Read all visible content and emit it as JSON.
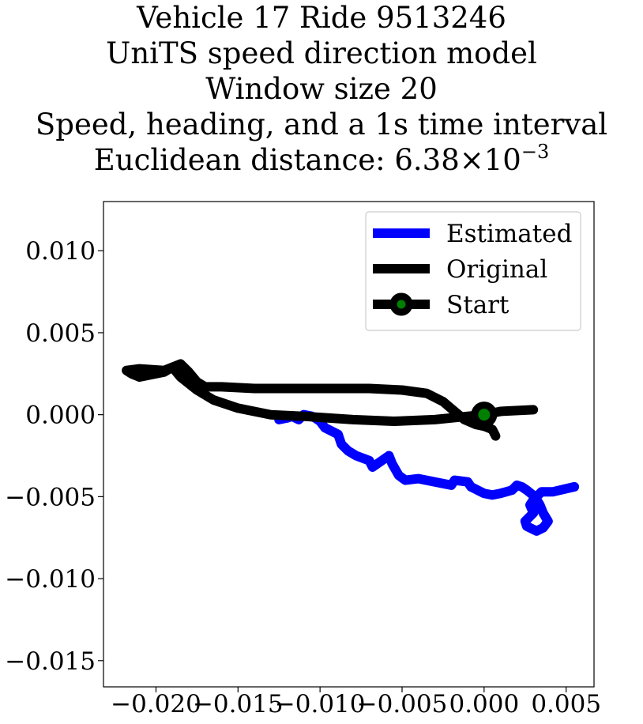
{
  "title": {
    "line1": "Vehicle 17 Ride 9513246",
    "line2": "UniTS speed direction model",
    "line3": "Window size 20",
    "line4": "Speed, heading, and a 1s time interval",
    "line5_prefix": "Euclidean distance: 6.38×10",
    "line5_exponent": "−3"
  },
  "chart_data": {
    "type": "line",
    "xlim": [
      -0.0232,
      0.0067
    ],
    "ylim": [
      -0.0166,
      0.013
    ],
    "x_ticks": [
      {
        "value": -0.02,
        "label": "−0.020"
      },
      {
        "value": -0.015,
        "label": "−0.015"
      },
      {
        "value": -0.01,
        "label": "−0.010"
      },
      {
        "value": -0.005,
        "label": "−0.005"
      },
      {
        "value": 0.0,
        "label": "0.000"
      },
      {
        "value": 0.005,
        "label": "0.005"
      }
    ],
    "y_ticks": [
      {
        "value": 0.01,
        "label": "0.010"
      },
      {
        "value": 0.005,
        "label": "0.005"
      },
      {
        "value": 0.0,
        "label": "0.000"
      },
      {
        "value": -0.005,
        "label": "−0.005"
      },
      {
        "value": -0.01,
        "label": "−0.010"
      },
      {
        "value": -0.015,
        "label": "−0.015"
      }
    ],
    "grid": false,
    "legend_position": "top-right",
    "series": [
      {
        "name": "Estimated",
        "color": "#0000ff",
        "x": [
          0.0055,
          0.0042,
          0.0035,
          0.003,
          0.0028,
          0.003,
          0.0025,
          0.0026,
          0.0032,
          0.0036,
          0.0039,
          0.0036,
          0.0034,
          0.0031,
          0.0026,
          0.0023,
          0.002,
          0.0017,
          0.001,
          0.0005,
          0.0,
          -0.0008,
          -0.001,
          -0.0018,
          -0.002,
          -0.004,
          -0.0048,
          -0.0052,
          -0.0056,
          -0.0058,
          -0.0068,
          -0.007,
          -0.0078,
          -0.0083,
          -0.0087,
          -0.0089,
          -0.0093,
          -0.0097,
          -0.01,
          -0.0103,
          -0.0105,
          -0.011,
          -0.0113,
          -0.0117,
          -0.012,
          -0.0125
        ],
        "y": [
          -0.0044,
          -0.0047,
          -0.0047,
          -0.0052,
          -0.0055,
          -0.006,
          -0.0065,
          -0.0068,
          -0.0071,
          -0.0069,
          -0.0065,
          -0.006,
          -0.0055,
          -0.005,
          -0.0046,
          -0.0044,
          -0.0043,
          -0.0046,
          -0.0048,
          -0.0049,
          -0.0048,
          -0.0044,
          -0.0041,
          -0.004,
          -0.0043,
          -0.0039,
          -0.004,
          -0.0037,
          -0.003,
          -0.0025,
          -0.0032,
          -0.0028,
          -0.0025,
          -0.0022,
          -0.0018,
          -0.0012,
          -0.001,
          -0.0008,
          -0.0004,
          -0.0002,
          -0.0001,
          0.0,
          -0.0003,
          -0.0001,
          -0.0002,
          -0.0003
        ]
      },
      {
        "name": "Original",
        "color": "#000000",
        "x": [
          0.003,
          0.001,
          0.0,
          -0.001,
          -0.003,
          -0.0055,
          -0.008,
          -0.011,
          -0.013,
          -0.015,
          -0.0165,
          -0.0175,
          -0.0185,
          -0.019,
          -0.0195,
          -0.021,
          -0.0215,
          -0.0218,
          -0.021,
          -0.0195,
          -0.0185,
          -0.018,
          -0.0175,
          -0.017,
          -0.016,
          -0.014,
          -0.01,
          -0.007,
          -0.005,
          -0.0035,
          -0.0025,
          -0.0018,
          -0.0012,
          -0.0005,
          0.0,
          0.0005,
          0.0007
        ],
        "y": [
          0.0003,
          0.0002,
          0.0,
          -0.0001,
          -0.0003,
          -0.0004,
          -0.0003,
          -0.0001,
          0.0,
          0.0004,
          0.0009,
          0.0015,
          0.0023,
          0.0029,
          0.0026,
          0.0023,
          0.0025,
          0.0027,
          0.0028,
          0.0027,
          0.0031,
          0.0026,
          0.002,
          0.0017,
          0.0017,
          0.0016,
          0.0016,
          0.0016,
          0.0015,
          0.0013,
          0.0008,
          0.0002,
          -0.0003,
          -0.0006,
          -0.0007,
          -0.0009,
          -0.0013
        ]
      }
    ],
    "start_marker": {
      "name": "Start",
      "x": 0.0,
      "y": 0.0,
      "edge_color": "#000000",
      "face_color": "#008000"
    },
    "legend": [
      {
        "label": "Estimated",
        "color": "#0000ff",
        "marker": false
      },
      {
        "label": "Original",
        "color": "#000000",
        "marker": false
      },
      {
        "label": "Start",
        "color": "#000000",
        "marker": true,
        "marker_face": "#008000"
      }
    ]
  }
}
